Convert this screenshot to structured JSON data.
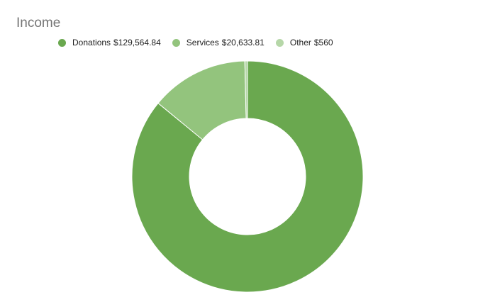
{
  "chart_data": {
    "type": "pie",
    "title": "Income",
    "donut": true,
    "legend_position": "top-left",
    "slices": [
      {
        "label": "Donations",
        "value": 129564.84,
        "value_label": "$129,564.84",
        "color": "#6aa84f"
      },
      {
        "label": "Services",
        "value": 20633.81,
        "value_label": "$20,633.81",
        "color": "#93c47d"
      },
      {
        "label": "Other",
        "value": 560,
        "value_label": "$560",
        "color": "#b6d7a8"
      }
    ]
  }
}
